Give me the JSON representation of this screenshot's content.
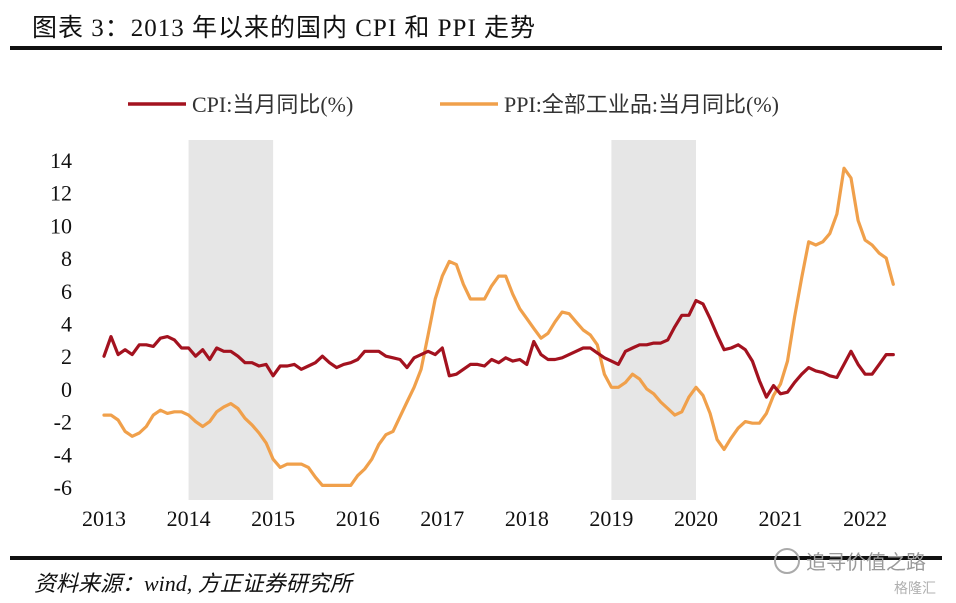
{
  "title": "图表 3：2013 年以来的国内 CPI 和 PPI 走势",
  "source": "资料来源：wind, 方正证券研究所",
  "watermark": "追寻价值之路",
  "watermark_sub": "格隆汇",
  "colors": {
    "cpi": "#a3121f",
    "ppi": "#f0a04b",
    "shade": "#e6e6e6"
  },
  "chart_data": {
    "type": "line",
    "xlim": [
      2013,
      2022.4
    ],
    "ylim": [
      -6.5,
      14.5
    ],
    "x_ticks": [
      "2013",
      "2014",
      "2015",
      "2016",
      "2017",
      "2018",
      "2019",
      "2020",
      "2021",
      "2022"
    ],
    "y_ticks": [
      "14",
      "12",
      "10",
      "8",
      "6",
      "4",
      "2",
      "0",
      "-2",
      "-4",
      "-6"
    ],
    "legend_position": "top",
    "shaded_periods": [
      [
        2014.0,
        2015.0
      ],
      [
        2019.0,
        2020.0
      ]
    ],
    "series": [
      {
        "name": "CPI:当月同比(%)",
        "x": [
          2013.0,
          2013.083,
          2013.167,
          2013.25,
          2013.333,
          2013.417,
          2013.5,
          2013.583,
          2013.667,
          2013.75,
          2013.833,
          2013.917,
          2014.0,
          2014.083,
          2014.167,
          2014.25,
          2014.333,
          2014.417,
          2014.5,
          2014.583,
          2014.667,
          2014.75,
          2014.833,
          2014.917,
          2015.0,
          2015.083,
          2015.167,
          2015.25,
          2015.333,
          2015.417,
          2015.5,
          2015.583,
          2015.667,
          2015.75,
          2015.833,
          2015.917,
          2016.0,
          2016.083,
          2016.167,
          2016.25,
          2016.333,
          2016.417,
          2016.5,
          2016.583,
          2016.667,
          2016.75,
          2016.833,
          2016.917,
          2017.0,
          2017.083,
          2017.167,
          2017.25,
          2017.333,
          2017.417,
          2017.5,
          2017.583,
          2017.667,
          2017.75,
          2017.833,
          2017.917,
          2018.0,
          2018.083,
          2018.167,
          2018.25,
          2018.333,
          2018.417,
          2018.5,
          2018.583,
          2018.667,
          2018.75,
          2018.833,
          2018.917,
          2019.0,
          2019.083,
          2019.167,
          2019.25,
          2019.333,
          2019.417,
          2019.5,
          2019.583,
          2019.667,
          2019.75,
          2019.833,
          2019.917,
          2020.0,
          2020.083,
          2020.167,
          2020.25,
          2020.333,
          2020.417,
          2020.5,
          2020.583,
          2020.667,
          2020.75,
          2020.833,
          2020.917,
          2021.0,
          2021.083,
          2021.167,
          2021.25,
          2021.333,
          2021.417,
          2021.5,
          2021.583,
          2021.667,
          2021.75,
          2021.833,
          2021.917,
          2022.0,
          2022.083,
          2022.167,
          2022.25,
          2022.333
        ],
        "values": [
          2.0,
          3.2,
          2.1,
          2.4,
          2.1,
          2.7,
          2.7,
          2.6,
          3.1,
          3.2,
          3.0,
          2.5,
          2.5,
          2.0,
          2.4,
          1.8,
          2.5,
          2.3,
          2.3,
          2.0,
          1.6,
          1.6,
          1.4,
          1.5,
          0.8,
          1.4,
          1.4,
          1.5,
          1.2,
          1.4,
          1.6,
          2.0,
          1.6,
          1.3,
          1.5,
          1.6,
          1.8,
          2.3,
          2.3,
          2.3,
          2.0,
          1.9,
          1.8,
          1.3,
          1.9,
          2.1,
          2.3,
          2.1,
          2.5,
          0.8,
          0.9,
          1.2,
          1.5,
          1.5,
          1.4,
          1.8,
          1.6,
          1.9,
          1.7,
          1.8,
          1.5,
          2.9,
          2.1,
          1.8,
          1.8,
          1.9,
          2.1,
          2.3,
          2.5,
          2.5,
          2.2,
          1.9,
          1.7,
          1.5,
          2.3,
          2.5,
          2.7,
          2.7,
          2.8,
          2.8,
          3.0,
          3.8,
          4.5,
          4.5,
          5.4,
          5.2,
          4.3,
          3.3,
          2.4,
          2.5,
          2.7,
          2.4,
          1.7,
          0.5,
          -0.5,
          0.2,
          -0.3,
          -0.2,
          0.4,
          0.9,
          1.3,
          1.1,
          1.0,
          0.8,
          0.7,
          1.5,
          2.3,
          1.5,
          0.9,
          0.9,
          1.5,
          2.1,
          2.1
        ]
      },
      {
        "name": "PPI:全部工业品:当月同比(%)",
        "x": [
          2013.0,
          2013.083,
          2013.167,
          2013.25,
          2013.333,
          2013.417,
          2013.5,
          2013.583,
          2013.667,
          2013.75,
          2013.833,
          2013.917,
          2014.0,
          2014.083,
          2014.167,
          2014.25,
          2014.333,
          2014.417,
          2014.5,
          2014.583,
          2014.667,
          2014.75,
          2014.833,
          2014.917,
          2015.0,
          2015.083,
          2015.167,
          2015.25,
          2015.333,
          2015.417,
          2015.5,
          2015.583,
          2015.667,
          2015.75,
          2015.833,
          2015.917,
          2016.0,
          2016.083,
          2016.167,
          2016.25,
          2016.333,
          2016.417,
          2016.5,
          2016.583,
          2016.667,
          2016.75,
          2016.833,
          2016.917,
          2017.0,
          2017.083,
          2017.167,
          2017.25,
          2017.333,
          2017.417,
          2017.5,
          2017.583,
          2017.667,
          2017.75,
          2017.833,
          2017.917,
          2018.0,
          2018.083,
          2018.167,
          2018.25,
          2018.333,
          2018.417,
          2018.5,
          2018.583,
          2018.667,
          2018.75,
          2018.833,
          2018.917,
          2019.0,
          2019.083,
          2019.167,
          2019.25,
          2019.333,
          2019.417,
          2019.5,
          2019.583,
          2019.667,
          2019.75,
          2019.833,
          2019.917,
          2020.0,
          2020.083,
          2020.167,
          2020.25,
          2020.333,
          2020.417,
          2020.5,
          2020.583,
          2020.667,
          2020.75,
          2020.833,
          2020.917,
          2021.0,
          2021.083,
          2021.167,
          2021.25,
          2021.333,
          2021.417,
          2021.5,
          2021.583,
          2021.667,
          2021.75,
          2021.833,
          2021.917,
          2022.0,
          2022.083,
          2022.167,
          2022.25,
          2022.333
        ],
        "values": [
          -1.6,
          -1.6,
          -1.9,
          -2.6,
          -2.9,
          -2.7,
          -2.3,
          -1.6,
          -1.3,
          -1.5,
          -1.4,
          -1.4,
          -1.6,
          -2.0,
          -2.3,
          -2.0,
          -1.4,
          -1.1,
          -0.9,
          -1.2,
          -1.8,
          -2.2,
          -2.7,
          -3.3,
          -4.3,
          -4.8,
          -4.6,
          -4.6,
          -4.6,
          -4.8,
          -5.4,
          -5.9,
          -5.9,
          -5.9,
          -5.9,
          -5.9,
          -5.3,
          -4.9,
          -4.3,
          -3.4,
          -2.8,
          -2.6,
          -1.7,
          -0.8,
          0.1,
          1.2,
          3.3,
          5.5,
          6.9,
          7.8,
          7.6,
          6.4,
          5.5,
          5.5,
          5.5,
          6.3,
          6.9,
          6.9,
          5.8,
          4.9,
          4.3,
          3.7,
          3.1,
          3.4,
          4.1,
          4.7,
          4.6,
          4.1,
          3.6,
          3.3,
          2.7,
          0.9,
          0.1,
          0.1,
          0.4,
          0.9,
          0.6,
          0.0,
          -0.3,
          -0.8,
          -1.2,
          -1.6,
          -1.4,
          -0.5,
          0.1,
          -0.4,
          -1.5,
          -3.1,
          -3.7,
          -3.0,
          -2.4,
          -2.0,
          -2.1,
          -2.1,
          -1.5,
          -0.4,
          0.3,
          1.7,
          4.4,
          6.8,
          9.0,
          8.8,
          9.0,
          9.5,
          10.7,
          13.5,
          12.9,
          10.3,
          9.1,
          8.8,
          8.3,
          8.0,
          6.4
        ]
      }
    ]
  }
}
